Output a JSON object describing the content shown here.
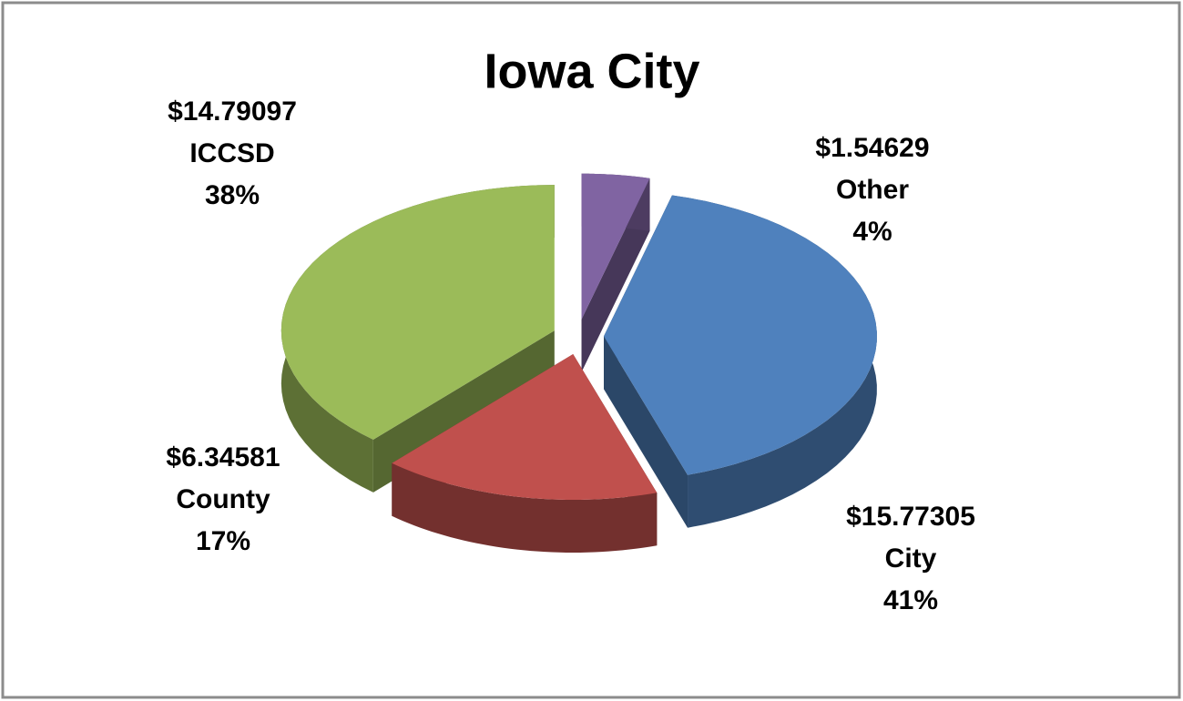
{
  "chart_data": {
    "type": "pie3d",
    "title": "Iowa City",
    "categories": [
      "Other",
      "City",
      "County",
      "ICCSD"
    ],
    "values": [
      1.54629,
      15.77305,
      6.34581,
      14.79097
    ],
    "value_labels": [
      "$1.54629",
      "$15.77305",
      "$6.34581",
      "$14.79097"
    ],
    "percent_labels": [
      "4%",
      "41%",
      "17%",
      "38%"
    ],
    "colors": [
      "#8064a2",
      "#4f81bd",
      "#c0504d",
      "#9bbb59"
    ]
  }
}
